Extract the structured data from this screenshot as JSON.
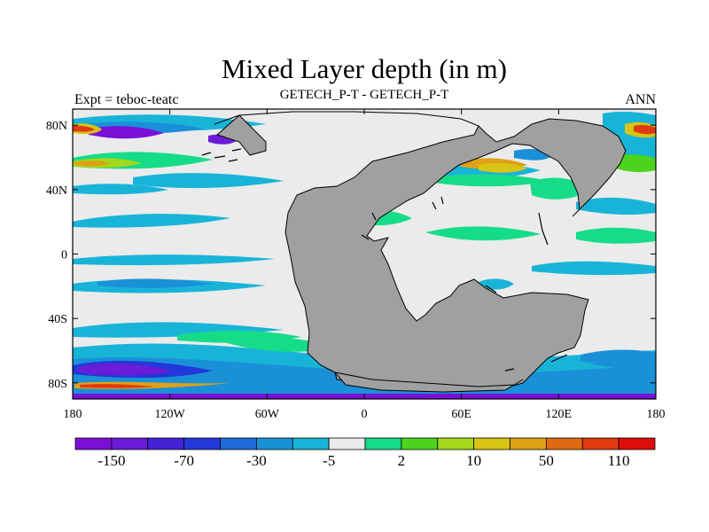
{
  "figure": {
    "title": "Mixed Layer depth (in m)",
    "left_subtitle": "Expt = teboc-teatc",
    "center_subtitle": "GETECH_P-T - GETECH_P-T",
    "right_subtitle": "ANN"
  },
  "map": {
    "projection": "cylindrical equidistant",
    "lon_range": [
      -180,
      180
    ],
    "lat_range": [
      -90,
      90
    ],
    "x_ticks": [
      "180",
      "120W",
      "60W",
      "0",
      "60E",
      "120E",
      "180"
    ],
    "y_ticks": [
      "80N",
      "40N",
      "0",
      "40S",
      "80S"
    ],
    "land_color": "#a0a0a0",
    "ocean_background_color": "#ebebeb",
    "coastline_color": "#000000"
  },
  "colorbar": {
    "colors": [
      "#7a10d8",
      "#6a1cd8",
      "#4422d8",
      "#2238d8",
      "#1e6cd8",
      "#1a90d8",
      "#18b4d8",
      "#ebebeb",
      "#16dc88",
      "#4cd41c",
      "#a4d81a",
      "#d8c414",
      "#e0a016",
      "#e06a12",
      "#e03a10",
      "#e00c0c"
    ],
    "labels": [
      "-150",
      "-70",
      "-30",
      "-5",
      "2",
      "10",
      "50",
      "110"
    ]
  }
}
